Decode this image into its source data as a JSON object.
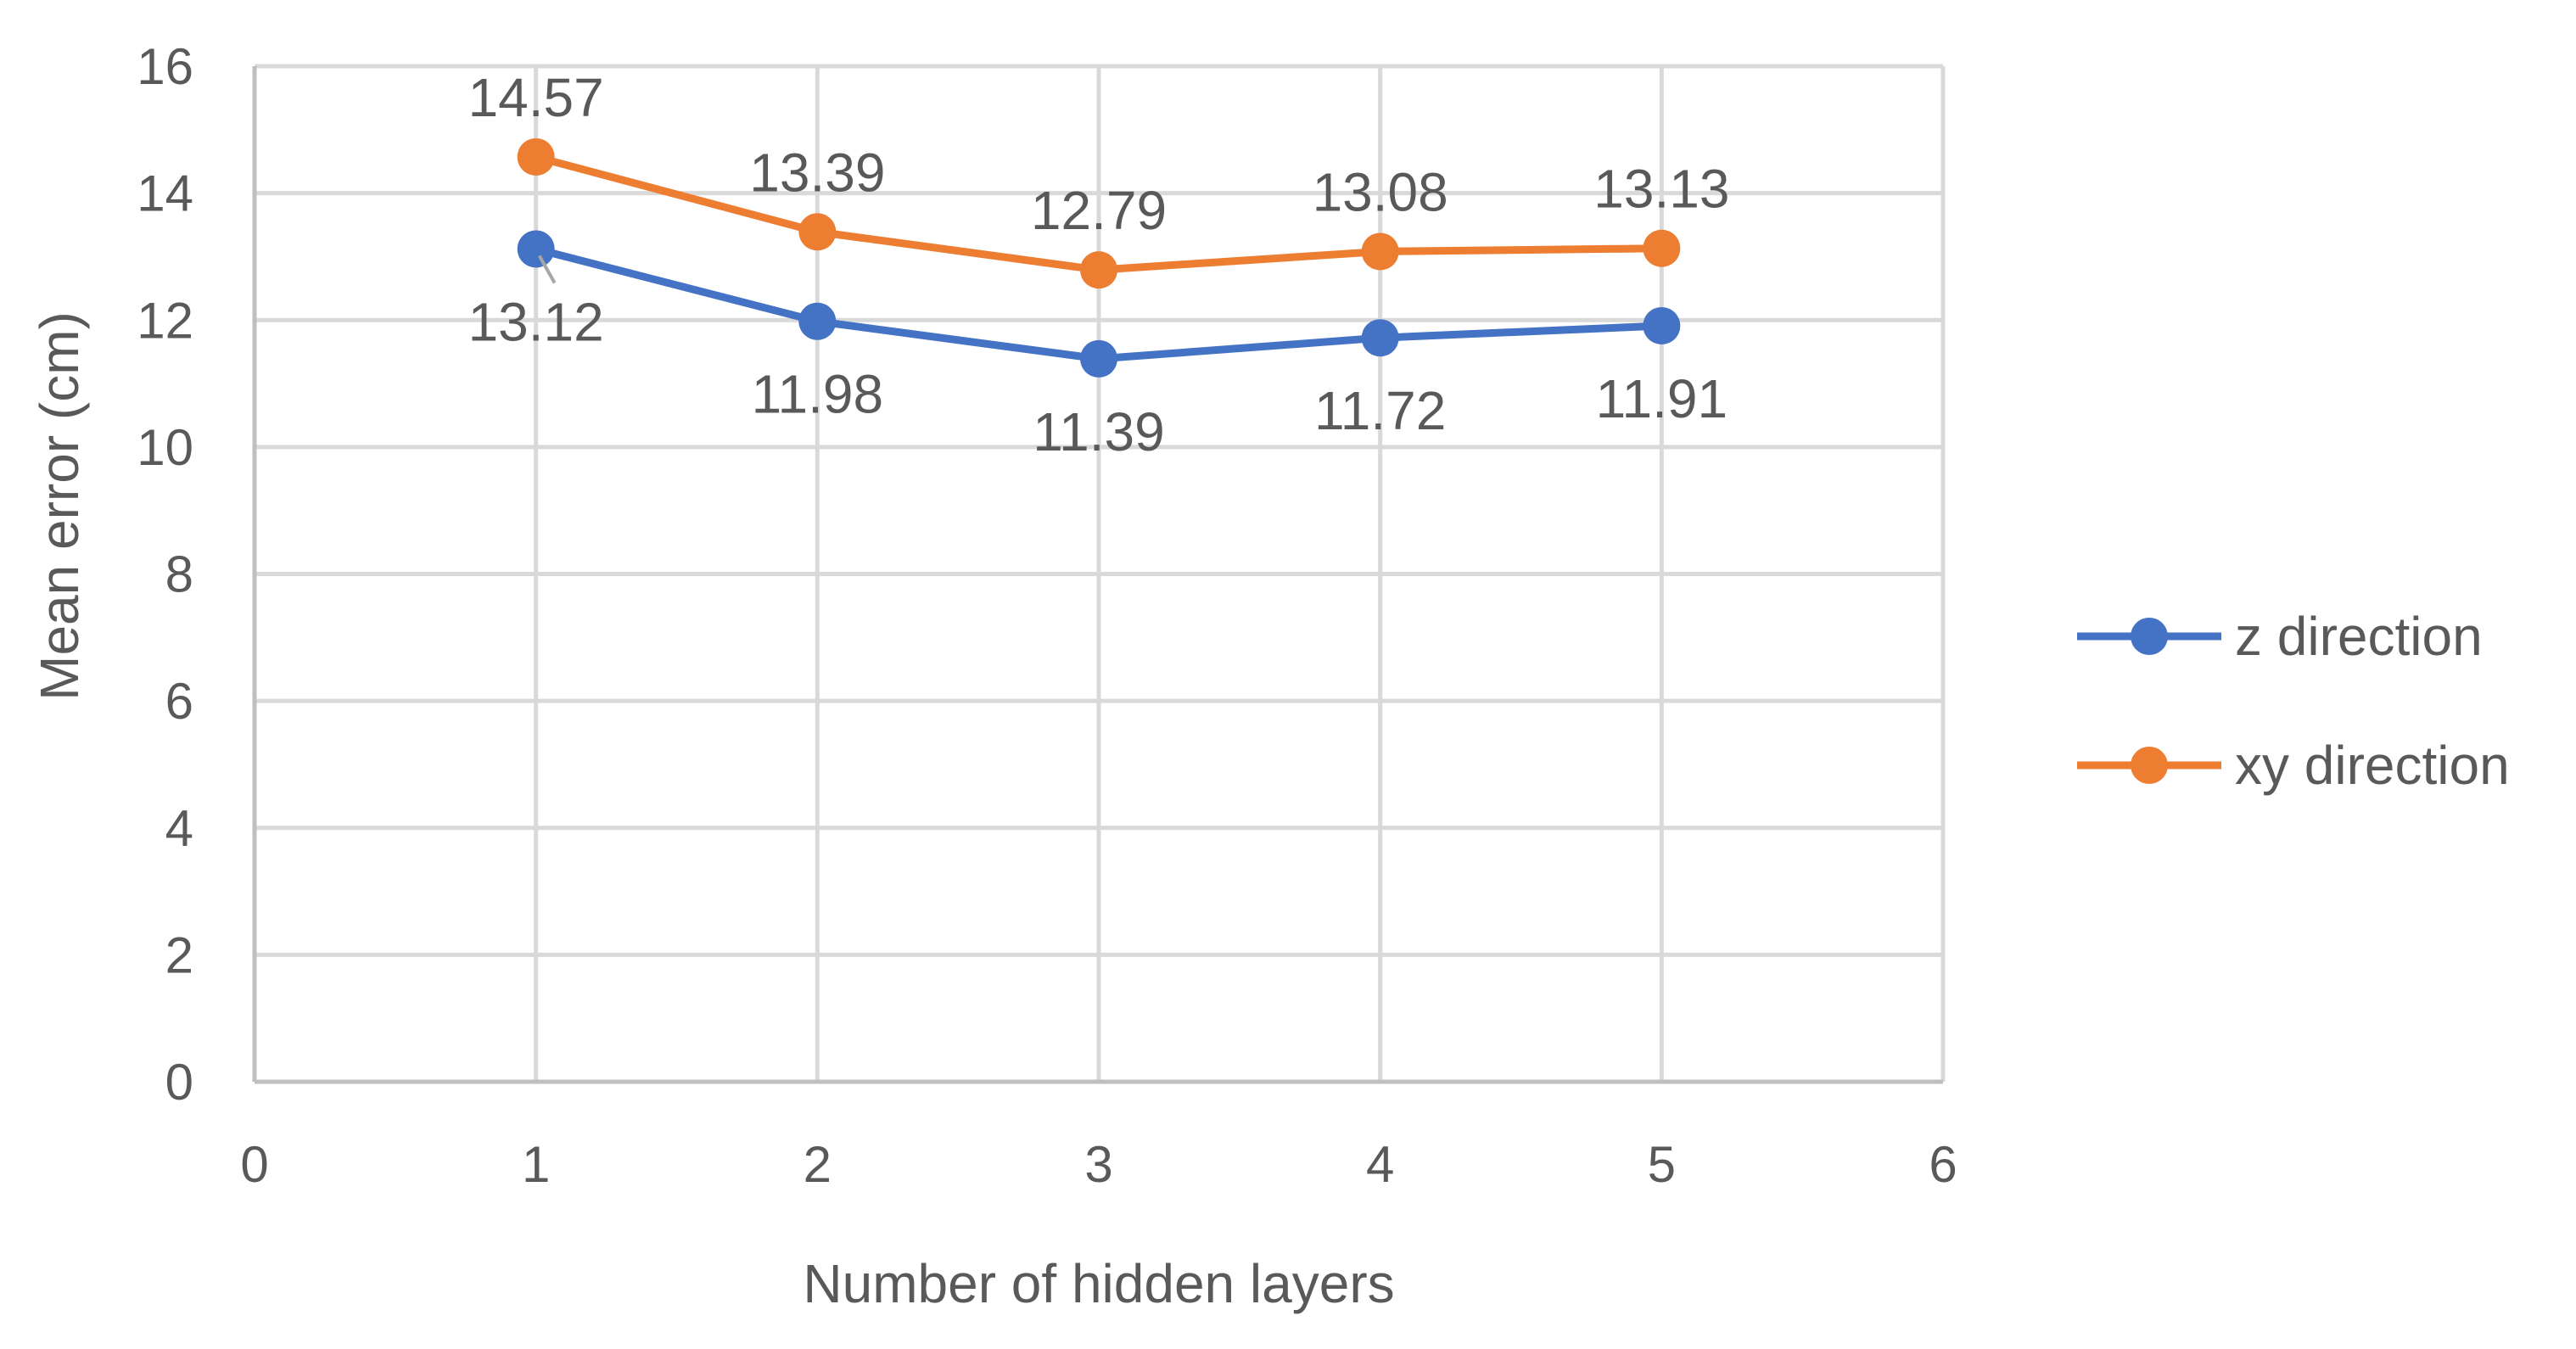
{
  "chart_data": {
    "type": "scatter",
    "title": "",
    "xlabel": "Number of hidden layers",
    "ylabel": "Mean error (cm)",
    "xlim": [
      0,
      6
    ],
    "ylim": [
      0,
      16
    ],
    "xticks": [
      0,
      1,
      2,
      3,
      4,
      5,
      6
    ],
    "yticks": [
      0,
      2,
      4,
      6,
      8,
      10,
      12,
      14,
      16
    ],
    "grid": true,
    "legend_position": "right",
    "series": [
      {
        "name": "z direction",
        "color": "#4472c4",
        "x": [
          1,
          2,
          3,
          4,
          5
        ],
        "y": [
          13.12,
          11.98,
          11.39,
          11.72,
          11.91
        ],
        "labels": [
          "13.12",
          "11.98",
          "11.39",
          "11.72",
          "11.91"
        ],
        "label_position": "below"
      },
      {
        "name": "xy direction",
        "color": "#ed7d31",
        "x": [
          1,
          2,
          3,
          4,
          5
        ],
        "y": [
          14.57,
          13.39,
          12.79,
          13.08,
          13.13
        ],
        "labels": [
          "14.57",
          "13.39",
          "12.79",
          "13.08",
          "13.13"
        ],
        "label_position": "above"
      }
    ]
  }
}
